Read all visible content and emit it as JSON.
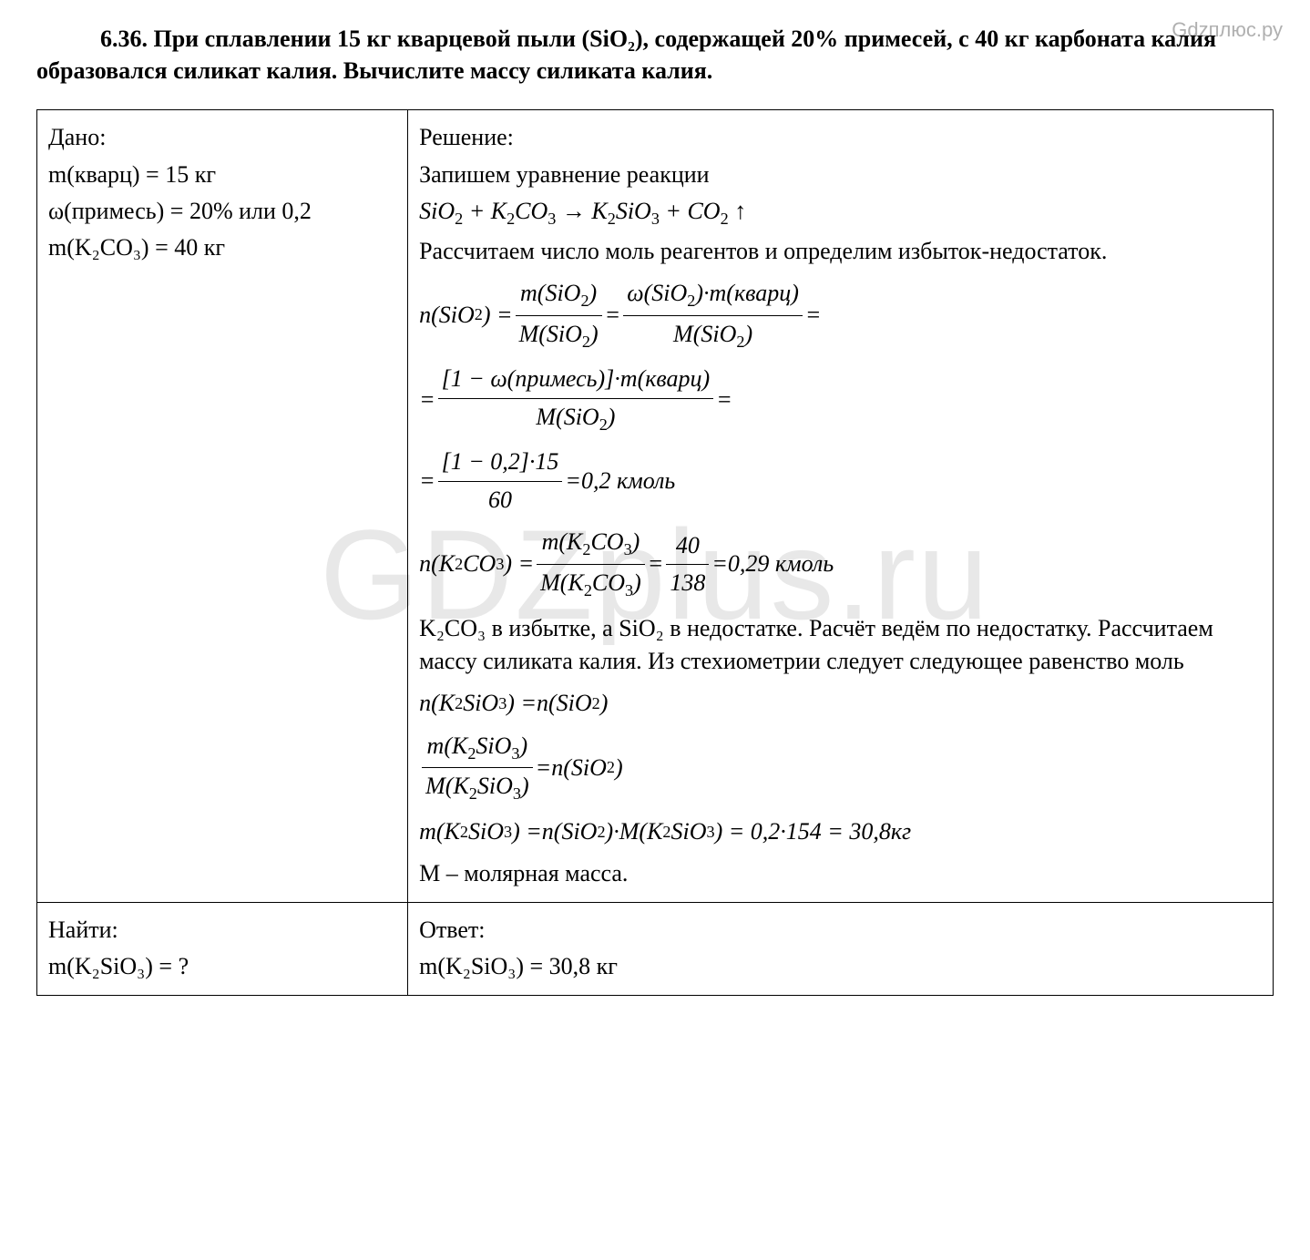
{
  "watermark_top": "Gdzплюс.ру",
  "watermark_center": "GDZplus.ru",
  "problem": {
    "number": "6.36.",
    "text": "При сплавлении 15 кг кварцевой пыли (SiO₂), содержащей 20% примесей, с 40 кг карбоната калия образовался силикат калия. Вычислите массу силиката калия."
  },
  "given": {
    "label": "Дано:",
    "line1": "m(кварц) = 15 кг",
    "line2": "ω(примесь) = 20% или 0,2",
    "line3": "m(K₂CO₃) = 40 кг"
  },
  "solution": {
    "label": "Решение:",
    "step1": "Запишем уравнение реакции",
    "reaction": "SiO₂ + K₂CO₃ → K₂SiO₃ + CO₂ ↑",
    "step2": "Рассчитаем число моль реагентов и определим избыток-недостаток.",
    "eq1_lhs": "n(SiO₂)",
    "eq1_mid_num": "m(SiO₂)",
    "eq1_mid_den": "M(SiO₂)",
    "eq1_rhs_num": "ω(SiO₂)·m(кварц)",
    "eq1_rhs_den": "M(SiO₂)",
    "eq2_num": "[1 − ω(примесь)]·m(кварц)",
    "eq2_den": "M(SiO₂)",
    "eq3_num": "[1 − 0,2]·15",
    "eq3_den": "60",
    "eq3_result": "0,2 кмоль",
    "eq4_lhs": "n(K₂CO₃)",
    "eq4_mid_num": "m(K₂CO₃)",
    "eq4_mid_den": "M(K₂CO₃)",
    "eq4_rhs_num": "40",
    "eq4_rhs_den": "138",
    "eq4_result": "0,29 кмоль",
    "step3": "K₂CO₃ в избытке, а SiO₂ в недостатке. Расчёт ведём по недостатку. Рассчитаем массу силиката калия. Из стехиометрии следует следующее равенство моль",
    "eq5": "n(K₂SiO₃) = n(SiO₂)",
    "eq6_num": "m(K₂SiO₃)",
    "eq6_den": "M(K₂SiO₃)",
    "eq6_rhs": "n(SiO₂)",
    "eq7": "m(K₂SiO₃) = n(SiO₂)·M(K₂SiO₃) = 0,2·154 = 30,8 кг",
    "step4": "M – молярная масса."
  },
  "find": {
    "label": "Найти:",
    "line1": "m(K₂SiO₃) = ?"
  },
  "answer": {
    "label": "Ответ:",
    "line1": "m(K₂SiO₃) = 30,8 кг"
  },
  "styles": {
    "body_fontsize": 26,
    "watermark_center_fontsize": 140,
    "watermark_top_fontsize": 22,
    "watermark_color": "#e8e8e8",
    "watermark_top_color": "#b0b0b0",
    "text_color": "#000000",
    "background_color": "#ffffff",
    "border_color": "#000000",
    "table_col1_width_pct": 30,
    "table_col2_width_pct": 70
  }
}
